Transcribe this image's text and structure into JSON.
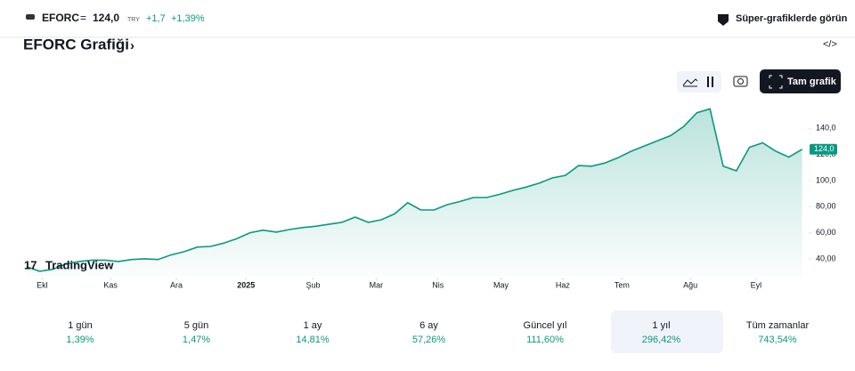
{
  "header": {
    "symbol": "EFORC",
    "price": "124,0",
    "currency": "TRY",
    "change": "+1,7",
    "change_pct": "+1,39%",
    "cta": "Süper-grafiklerde görün"
  },
  "title": "EFORC Grafiği",
  "toolbar": {
    "full_chart": "Tam grafik"
  },
  "logo": "TradingView",
  "chart_data": {
    "type": "area",
    "color": "#089981",
    "values": [
      34,
      30.5,
      32,
      36,
      38,
      39,
      39,
      38,
      39.5,
      40,
      39.5,
      43,
      45.5,
      49,
      49.5,
      52,
      55.5,
      60,
      62,
      60.5,
      62.5,
      64,
      65,
      66.5,
      68,
      72,
      68,
      70,
      74.5,
      83,
      77.5,
      77.5,
      81.5,
      84,
      87,
      87,
      89.5,
      92.5,
      95,
      98,
      102,
      104,
      111.5,
      111,
      113.5,
      117.5,
      122.5,
      126.5,
      130.5,
      134.5,
      141.5,
      152,
      155,
      111,
      107.5,
      125.5,
      129,
      122.5,
      118,
      124
    ],
    "last_value_label": "124,0",
    "xlim": [
      -1.2,
      59.3
    ],
    "xticks": [
      {
        "value": 1.2,
        "label": "Ekl"
      },
      {
        "value": 6.4,
        "label": "Kas"
      },
      {
        "value": 11.4,
        "label": "Ara"
      },
      {
        "value": 16.7,
        "label": "2025"
      },
      {
        "value": 21.8,
        "label": "Şub"
      },
      {
        "value": 26.6,
        "label": "Mar"
      },
      {
        "value": 31.3,
        "label": "Nis"
      },
      {
        "value": 36.1,
        "label": "May"
      },
      {
        "value": 40.8,
        "label": "Haz"
      },
      {
        "value": 45.3,
        "label": "Tem"
      },
      {
        "value": 50.5,
        "label": "Ağu"
      },
      {
        "value": 55.5,
        "label": "Eyl"
      }
    ],
    "ylim": [
      27,
      160
    ],
    "yticks": [
      {
        "value": 40,
        "label": "40,00"
      },
      {
        "value": 60,
        "label": "60,00"
      },
      {
        "value": 80,
        "label": "80,00"
      },
      {
        "value": 100,
        "label": "100,0"
      },
      {
        "value": 120,
        "label": "120,0"
      },
      {
        "value": 140,
        "label": "140,0"
      }
    ]
  },
  "periods": [
    {
      "label": "1 gün",
      "value": "1,39%"
    },
    {
      "label": "5 gün",
      "value": "1,47%"
    },
    {
      "label": "1 ay",
      "value": "14,81%"
    },
    {
      "label": "6 ay",
      "value": "57,26%"
    },
    {
      "label": "Güncel yıl",
      "value": "111,60%"
    },
    {
      "label": "1 yıl",
      "value": "296,42%"
    },
    {
      "label": "Tüm zamanlar",
      "value": "743,54%"
    }
  ]
}
